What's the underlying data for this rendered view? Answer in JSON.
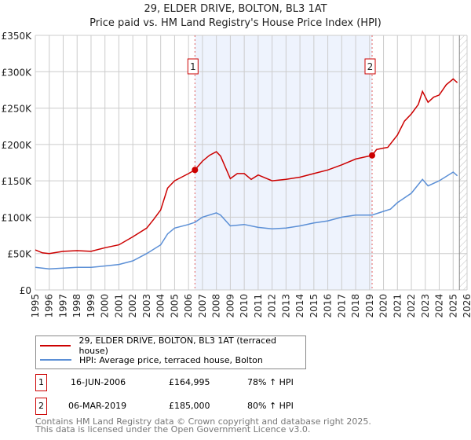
{
  "title": "29, ELDER DRIVE, BOLTON, BL3 1AT",
  "subtitle": "Price paid vs. HM Land Registry's House Price Index (HPI)",
  "colors": {
    "property": "#cc0000",
    "hpi": "#5b8fd6",
    "shade": "#eef3fd"
  },
  "chart_data": {
    "type": "line",
    "title": "29, ELDER DRIVE, BOLTON, BL3 1AT",
    "subtitle": "Price paid vs. HM Land Registry's House Price Index (HPI)",
    "xlim": [
      1995,
      2026
    ],
    "ylim": [
      0,
      350000
    ],
    "yticks": [
      0,
      50000,
      100000,
      150000,
      200000,
      250000,
      300000,
      350000
    ],
    "ytick_labels": [
      "£0",
      "£50K",
      "£100K",
      "£150K",
      "£200K",
      "£250K",
      "£300K",
      "£350K"
    ],
    "xticks": [
      "1995",
      "1996",
      "1997",
      "1998",
      "1999",
      "2000",
      "2001",
      "2002",
      "2003",
      "2004",
      "2005",
      "2006",
      "2007",
      "2008",
      "2009",
      "2010",
      "2011",
      "2012",
      "2013",
      "2014",
      "2015",
      "2016",
      "2017",
      "2018",
      "2019",
      "2020",
      "2021",
      "2022",
      "2023",
      "2024",
      "2025",
      "2026"
    ],
    "grid": true,
    "series": [
      {
        "name": "29, ELDER DRIVE, BOLTON, BL3 1AT (terraced house)",
        "x": [
          1995,
          1995.5,
          1996,
          1997,
          1998,
          1999,
          2000,
          2001,
          2002,
          2003,
          2003.5,
          2004,
          2004.5,
          2005,
          2005.5,
          2006,
          2006.46,
          2007,
          2007.5,
          2008,
          2008.3,
          2009,
          2009.5,
          2010,
          2010.5,
          2011,
          2012,
          2013,
          2014,
          2015,
          2016,
          2017,
          2018,
          2019.18,
          2019.5,
          2020,
          2020.3,
          2021,
          2021.5,
          2022,
          2022.5,
          2022.8,
          2023.2,
          2023.6,
          2024,
          2024.5,
          2025,
          2025.3
        ],
        "y": [
          55000,
          51000,
          50000,
          53000,
          54000,
          53000,
          58000,
          62000,
          73000,
          85000,
          97000,
          110000,
          140000,
          150000,
          155000,
          160000,
          164995,
          177000,
          185000,
          190000,
          184000,
          153000,
          160000,
          160000,
          152000,
          158000,
          150000,
          152000,
          155000,
          160000,
          165000,
          172000,
          180000,
          185000,
          193000,
          195000,
          196000,
          213000,
          232000,
          242000,
          255000,
          273000,
          258000,
          265000,
          268000,
          282000,
          290000,
          285000
        ]
      },
      {
        "name": "HPI: Average price, terraced house, Bolton",
        "x": [
          1995,
          1996,
          1997,
          1998,
          1999,
          2000,
          2001,
          2002,
          2003,
          2004,
          2004.5,
          2005,
          2006,
          2006.46,
          2007,
          2008,
          2008.3,
          2009,
          2010,
          2011,
          2012,
          2013,
          2014,
          2015,
          2016,
          2017,
          2018,
          2019.18,
          2020,
          2020.5,
          2021,
          2022,
          2022.8,
          2023.2,
          2024,
          2025,
          2025.3
        ],
        "y": [
          31000,
          29000,
          30000,
          31000,
          31000,
          33000,
          35000,
          40000,
          50000,
          62000,
          77000,
          85000,
          90000,
          93000,
          100000,
          106000,
          103000,
          88000,
          90000,
          86000,
          84000,
          85000,
          88000,
          92000,
          95000,
          100000,
          103000,
          103000,
          108000,
          111000,
          120000,
          133000,
          152000,
          143000,
          150000,
          162000,
          157000
        ]
      }
    ],
    "sales": [
      {
        "label": "1",
        "x": 2006.46,
        "y": 164995
      },
      {
        "label": "2",
        "x": 2019.18,
        "y": 185000
      }
    ],
    "shaded_between": [
      2006.46,
      2019.18
    ],
    "forecast_from": 2025.45,
    "legend_placement": "below"
  },
  "legend": [
    {
      "label": "29, ELDER DRIVE, BOLTON, BL3 1AT (terraced house)"
    },
    {
      "label": "HPI: Average price, terraced house, Bolton"
    }
  ],
  "transactions": [
    {
      "num": "1",
      "date": "16-JUN-2006",
      "price": "£164,995",
      "hpi": "78% ↑ HPI"
    },
    {
      "num": "2",
      "date": "06-MAR-2019",
      "price": "£185,000",
      "hpi": "80% ↑ HPI"
    }
  ],
  "footer": {
    "line1": "Contains HM Land Registry data © Crown copyright and database right 2025.",
    "line2": "This data is licensed under the Open Government Licence v3.0."
  }
}
